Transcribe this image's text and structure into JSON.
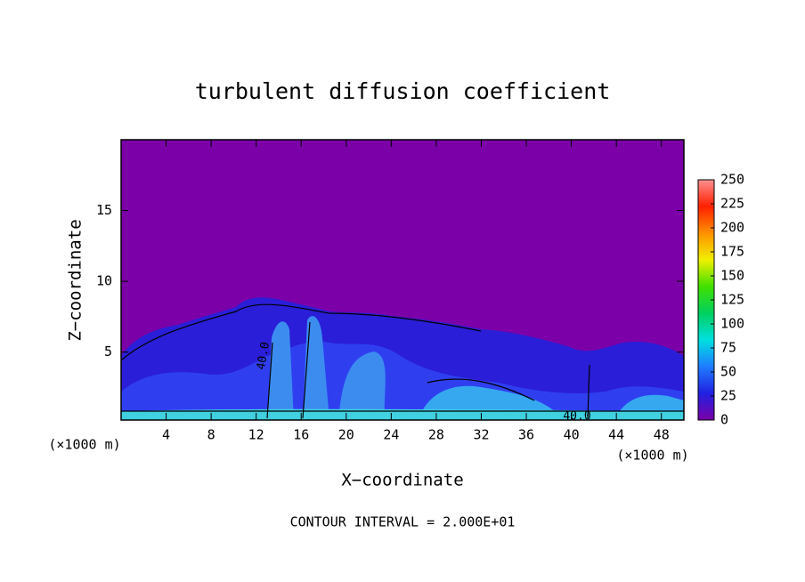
{
  "chart_data": {
    "type": "contour",
    "title": "turbulent diffusion coefficient",
    "xlabel": "X−coordinate",
    "ylabel": "Z−coordinate",
    "x_unit": "(×1000 m)",
    "note": "CONTOUR INTERVAL = 2.000E+01",
    "xlim": [
      0,
      50
    ],
    "xticks": [
      4,
      8,
      12,
      16,
      20,
      24,
      28,
      32,
      36,
      40,
      44,
      48
    ],
    "ylim": [
      0.2,
      20
    ],
    "yticks": [
      5,
      10,
      15
    ],
    "colorbar_lim": [
      0,
      250
    ],
    "colorbar_ticks": [
      0,
      25,
      50,
      75,
      100,
      125,
      150,
      175,
      200,
      225,
      250
    ],
    "colormap": [
      "#7b00a8",
      "#2020e0",
      "#1f7cff",
      "#00e0e0",
      "#00d060",
      "#40e000",
      "#f0f000",
      "#ff9000",
      "#ff2000",
      "#ff9090"
    ],
    "annotations": [
      "40.0",
      "40.0"
    ]
  }
}
